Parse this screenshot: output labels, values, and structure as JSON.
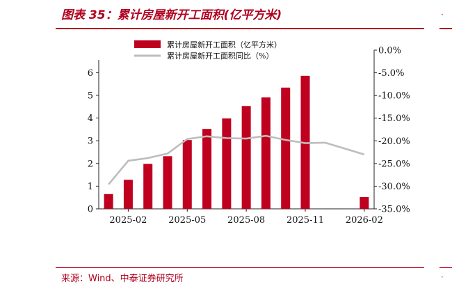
{
  "header": {
    "title": "图表 35：累计房屋新开工面积(亿平方米)"
  },
  "right_fragment": {
    "top_glyph": "·",
    "bottom_glyph": "·"
  },
  "source": {
    "text": "来源：Wind、中泰证券研究所"
  },
  "colors": {
    "accent": "#b0001e",
    "bar": "#c0001f",
    "line": "#bdbdbd"
  },
  "chart_data": {
    "type": "bar",
    "title": "",
    "x": [
      "2025-01",
      "2025-02",
      "2025-03",
      "2025-04",
      "2025-05",
      "2025-06",
      "2025-07",
      "2025-08",
      "2025-09",
      "2025-10",
      "2025-11",
      "2025-12",
      "2026-01",
      "2026-02"
    ],
    "x_tick_labels": [
      "2025-02",
      "2025-05",
      "2025-08",
      "2025-11",
      "2026-02"
    ],
    "series": [
      {
        "name": "累计房屋新开工面积（亿平方米）",
        "type": "bar",
        "axis": "left",
        "values": [
          0.65,
          1.28,
          1.98,
          2.32,
          3.03,
          3.52,
          3.98,
          4.53,
          4.91,
          5.34,
          5.86,
          null,
          null,
          0.52
        ]
      },
      {
        "name": "累计房屋新开工面积同比（%）",
        "type": "line",
        "axis": "right",
        "values": [
          -29.6,
          -24.4,
          -23.8,
          -22.8,
          -19.6,
          -19.0,
          -19.4,
          -19.5,
          -18.9,
          -19.8,
          -20.5,
          -20.4,
          null,
          -23.0
        ]
      }
    ],
    "y_left": {
      "range": [
        0,
        6.5
      ],
      "ticks": [
        "0",
        "1",
        "2",
        "3",
        "4",
        "5",
        "6"
      ]
    },
    "y_right": {
      "range": [
        -35,
        0
      ],
      "ticks": [
        "0.0%",
        "-5.0%",
        "-10.0%",
        "-15.0%",
        "-20.0%",
        "-25.0%",
        "-30.0%",
        "-35.0%"
      ]
    },
    "grid": false,
    "legend_position": "top"
  }
}
